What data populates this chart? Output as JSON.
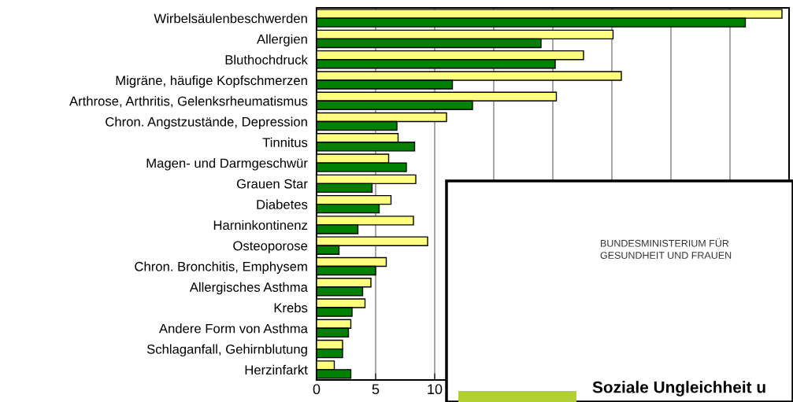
{
  "chart_data": {
    "type": "bar",
    "orientation": "horizontal",
    "categories": [
      "Wirbelsäulenbeschwerden",
      "Allergien",
      "Bluthochdruck",
      "Migräne, häufige Kopfschmerzen",
      "Arthrose, Arthritis, Gelenksrheumatismus",
      "Chron. Angstzustände, Depression",
      "Tinnitus",
      "Magen- und Darmgeschwür",
      "Grauen Star",
      "Diabetes",
      "Harninkontinenz",
      "Osteoporose",
      "Chron. Bronchitis, Emphysem",
      "Allergisches Asthma",
      "Krebs",
      "Andere Form von Asthma",
      "Schlaganfall, Gehirnblutung",
      "Herzinfarkt"
    ],
    "series": [
      {
        "color": "#ffff80",
        "values": [
          39.4,
          25.1,
          22.6,
          25.8,
          20.3,
          11.0,
          6.9,
          6.1,
          8.4,
          6.3,
          8.2,
          9.4,
          5.9,
          4.6,
          4.1,
          2.9,
          2.2,
          1.5
        ]
      },
      {
        "color": "#008000",
        "values": [
          36.3,
          19.0,
          20.2,
          11.5,
          13.2,
          6.8,
          8.3,
          7.6,
          4.7,
          5.3,
          3.5,
          1.9,
          5.0,
          3.9,
          3.0,
          2.7,
          2.2,
          2.9
        ]
      }
    ],
    "xlim": [
      0,
      40
    ],
    "xticks": [
      0,
      5,
      10,
      {
        "value": 15,
        "label": null
      },
      {
        "value": 20,
        "label": null
      },
      {
        "value": 25,
        "label": null
      },
      {
        "value": 30,
        "label": null
      },
      {
        "value": 35,
        "label": null
      },
      {
        "value": 40,
        "label": null
      }
    ],
    "grid": "x",
    "annotations": [
      "BUNDESMINISTERIUM FÜR\nGESUNDHEIT UND FRAUEN",
      "Soziale Ungleichheit u"
    ]
  }
}
